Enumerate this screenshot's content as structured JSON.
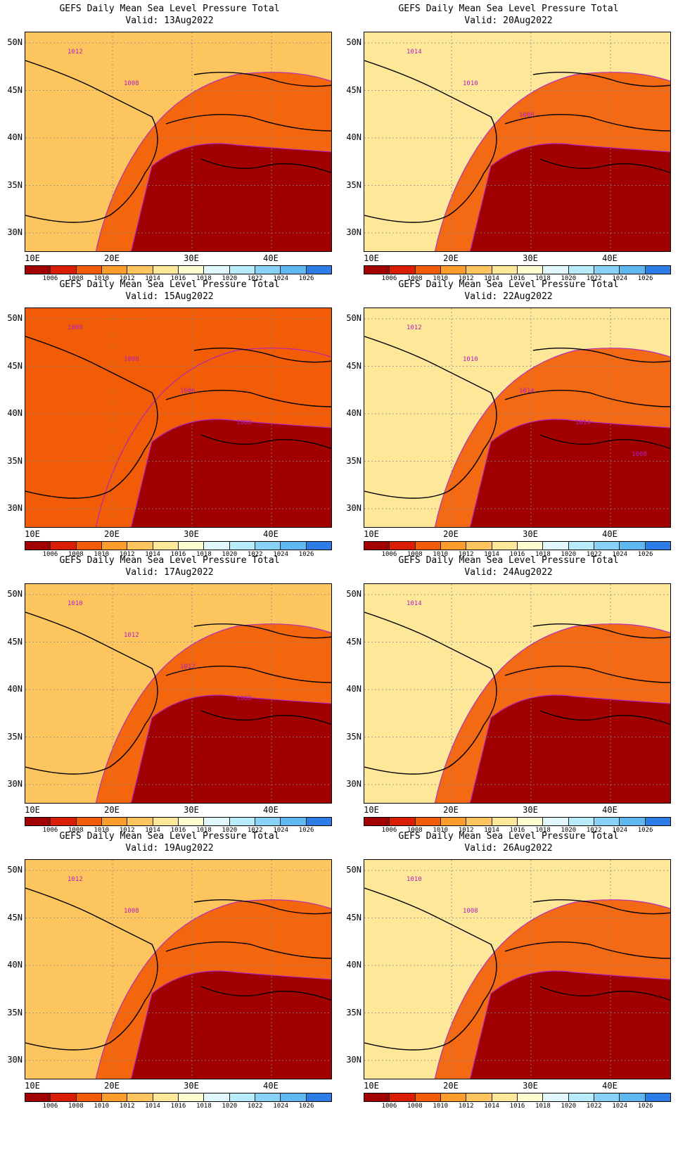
{
  "colorbar": {
    "labels": [
      "1006",
      "1008",
      "1010",
      "1012",
      "1014",
      "1016",
      "1018",
      "1020",
      "1022",
      "1024",
      "1026"
    ],
    "colors": [
      "#a00000",
      "#d81e05",
      "#f25c06",
      "#fb9d2c",
      "#fdc55e",
      "#fde89a",
      "#fefed0",
      "#e0f8fc",
      "#b8ecfa",
      "#87d2f5",
      "#5fb8f0",
      "#2c7de6"
    ]
  },
  "lat_ticks": [
    "50N",
    "45N",
    "40N",
    "35N",
    "30N"
  ],
  "lon_ticks": [
    "10E",
    "20E",
    "30E",
    "40E"
  ],
  "panels": [
    {
      "title": "GEFS Daily Mean Sea Level Pressure Total",
      "valid": "Valid: 13Aug2022",
      "contour_labels": [
        "1012",
        "1008"
      ],
      "base": "#fdc55e",
      "low": "#a00000"
    },
    {
      "title": "GEFS Daily Mean Sea Level Pressure Total",
      "valid": "Valid: 20Aug2022",
      "contour_labels": [
        "1014",
        "1010",
        "1008"
      ],
      "base": "#fde89a",
      "low": "#a00000"
    },
    {
      "title": "GEFS Daily Mean Sea Level Pressure Total",
      "valid": "Valid: 15Aug2022",
      "contour_labels": [
        "1008",
        "1008",
        "1006",
        "1008"
      ],
      "base": "#f25c06",
      "low": "#a00000"
    },
    {
      "title": "GEFS Daily Mean Sea Level Pressure Total",
      "valid": "Valid: 22Aug2022",
      "contour_labels": [
        "1012",
        "1010",
        "1014",
        "1014",
        "1008"
      ],
      "base": "#fde89a",
      "low": "#a00000"
    },
    {
      "title": "GEFS Daily Mean Sea Level Pressure Total",
      "valid": "Valid: 17Aug2022",
      "contour_labels": [
        "1010",
        "1012",
        "1012",
        "1008"
      ],
      "base": "#fdc55e",
      "low": "#a00000"
    },
    {
      "title": "GEFS Daily Mean Sea Level Pressure Total",
      "valid": "Valid: 24Aug2022",
      "contour_labels": [
        "1014"
      ],
      "base": "#fde89a",
      "low": "#a00000"
    },
    {
      "title": "GEFS Daily Mean Sea Level Pressure Total",
      "valid": "Valid: 19Aug2022",
      "contour_labels": [
        "1012",
        "1008"
      ],
      "base": "#fdc55e",
      "low": "#a00000"
    },
    {
      "title": "GEFS Daily Mean Sea Level Pressure Total",
      "valid": "Valid: 26Aug2022",
      "contour_labels": [
        "1010",
        "1008"
      ],
      "base": "#fde89a",
      "low": "#a00000"
    }
  ]
}
